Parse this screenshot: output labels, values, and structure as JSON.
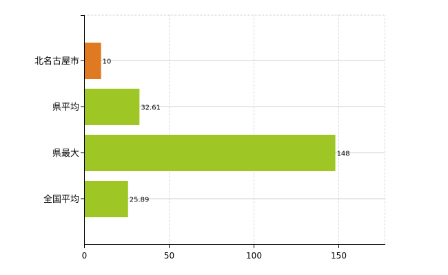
{
  "chart_data": {
    "type": "bar",
    "orientation": "horizontal",
    "categories": [
      "北名古屋市",
      "県平均",
      "県最大",
      "全国平均"
    ],
    "values": [
      10,
      32.61,
      148,
      25.89
    ],
    "value_labels": [
      "10",
      "32.61",
      "148",
      "25.89"
    ],
    "colors": [
      "#E07A22",
      "#9EC725",
      "#9EC725",
      "#9EC725"
    ],
    "xlim": [
      0,
      177
    ],
    "xticks": [
      0,
      50,
      100,
      150
    ],
    "grid": true
  }
}
